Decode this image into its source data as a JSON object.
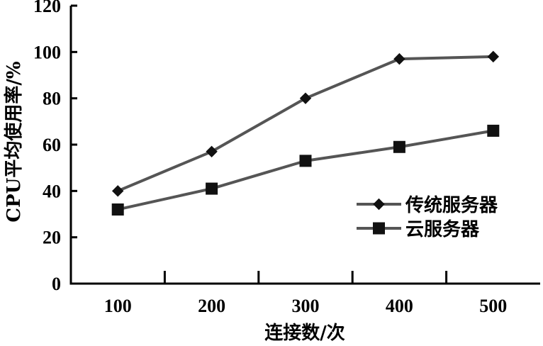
{
  "chart_data": {
    "type": "line",
    "categories": [
      "100",
      "200",
      "300",
      "400",
      "500"
    ],
    "series": [
      {
        "name": "传统服务器",
        "values": [
          40,
          57,
          80,
          97,
          98
        ],
        "marker": "diamond",
        "color": "#555555"
      },
      {
        "name": "云服务器",
        "values": [
          32,
          41,
          53,
          59,
          66
        ],
        "marker": "square",
        "color": "#555555"
      }
    ],
    "xlabel": "连接数/次",
    "ylabel": "CPU平均使用率/%",
    "ylim": [
      0,
      120
    ],
    "yticks": [
      0,
      20,
      40,
      60,
      80,
      100,
      120
    ],
    "grid": false,
    "legend": "right"
  }
}
